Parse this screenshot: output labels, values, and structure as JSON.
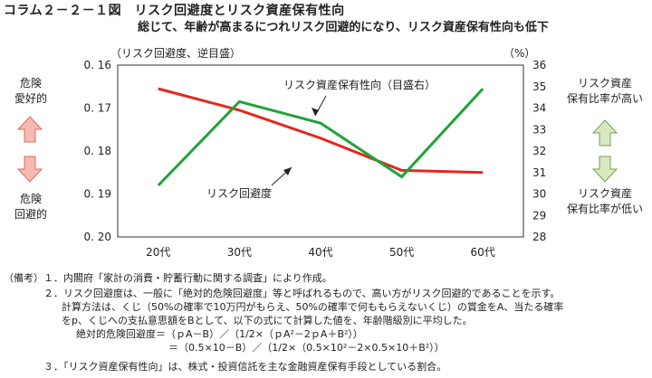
{
  "header": {
    "title": "コラム２－２－１図　リスク回避度とリスク資産保有性向",
    "subtitle": "総じて、年齢が高まるにつれリスク回避的になり、リスク資産保有性向も低下"
  },
  "left_side": {
    "top_label_1": "危険",
    "top_label_2": "愛好的",
    "bottom_label_1": "危険",
    "bottom_label_2": "回避的"
  },
  "right_side": {
    "top_label_1": "リスク資産",
    "top_label_2": "保有比率が高い",
    "bottom_label_1": "リスク資産",
    "bottom_label_2": "保有比率が低い"
  },
  "colors": {
    "risk_aversion": "#e8251f",
    "risk_asset": "#1fa33a",
    "arrow_red_fill": "#f6b9b3",
    "arrow_red_stroke": "#e46a5f",
    "arrow_green_fill": "#d8e8bf",
    "arrow_green_stroke": "#7a9f59"
  },
  "chart_data": {
    "type": "line",
    "categories": [
      "20代",
      "30代",
      "40代",
      "50代",
      "60代"
    ],
    "y_left": {
      "label": "（リスク回避度、逆目盛）",
      "min": 0.16,
      "max": 0.2,
      "inverted": true,
      "ticks": [
        "0. 16",
        "0. 17",
        "0. 18",
        "0. 19",
        "0. 20"
      ]
    },
    "y_right": {
      "label": "（%）",
      "min": 28,
      "max": 36,
      "ticks": [
        "36",
        "35",
        "34",
        "33",
        "32",
        "31",
        "30",
        "29",
        "28"
      ]
    },
    "series": [
      {
        "name": "リスク回避度",
        "axis": "left",
        "values": [
          0.1655,
          0.1705,
          0.177,
          0.1845,
          0.185
        ]
      },
      {
        "name": "リスク資産保有性向（目盛右）",
        "axis": "right",
        "values": [
          30.4,
          34.3,
          33.3,
          30.8,
          34.9
        ]
      }
    ],
    "annotations": [
      "リスク資産保有性向（目盛右）",
      "リスク回避度"
    ],
    "grid": false
  },
  "notes": {
    "label": "（備考）",
    "n1": "１．内閣府「家計の消費・貯蓄行動に関する調査」により作成。",
    "n2a": "２．リスク回避度は、一般に「絶対的危険回避度」等と呼ばれるもので、高い方がリスク回避的であることを示す。",
    "n2b": "計算方法は、くじ（50%の確率で10万円がもらえ、50%の確率で何ももらえないくじ）の賞金をA、当たる確率",
    "n2c": "をp、くじへの支払意思額をBとして、以下の式にて計算した値を、年齢階級別に平均した。",
    "n2d": "絶対的危険回避度＝（ｐA－B）／（1/2×（ｐA²－2ｐA＋B²））",
    "n2e": "＝（0.5×10－B）／（1/2×（0.5×10²－2×0.5×10＋B²））",
    "n3": "３．「リスク資産保有性向」は、株式・投資信託を主な金融資産保有手段としている割合。"
  }
}
